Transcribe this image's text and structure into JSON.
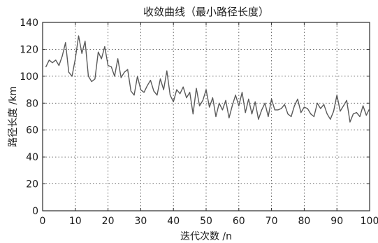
{
  "chart_data": {
    "type": "line",
    "title": "收敛曲线（最小路径长度）",
    "xlabel": "迭代次数 /n",
    "ylabel": "路径长度 /km",
    "xlim": [
      0,
      100
    ],
    "ylim": [
      0,
      140
    ],
    "xticks": [
      "0",
      "10",
      "20",
      "30",
      "40",
      "50",
      "60",
      "70",
      "80",
      "90",
      "100"
    ],
    "yticks": [
      "0",
      "20",
      "40",
      "60",
      "80",
      "100",
      "120",
      "140"
    ],
    "grid": true,
    "series": [
      {
        "x": [
          1,
          2,
          3,
          4,
          5,
          6,
          7,
          8,
          9,
          10,
          11,
          12,
          13,
          14,
          15,
          16,
          17,
          18,
          19,
          20,
          21,
          22,
          23,
          24,
          25,
          26,
          27,
          28,
          29,
          30,
          31,
          32,
          33,
          34,
          35,
          36,
          37,
          38,
          39,
          40,
          41,
          42,
          43,
          44,
          45,
          46,
          47,
          48,
          49,
          50,
          51,
          52,
          53,
          54,
          55,
          56,
          57,
          58,
          59,
          60,
          61,
          62,
          63,
          64,
          65,
          66,
          67,
          68,
          69,
          70,
          71,
          72,
          73,
          74,
          75,
          76,
          77,
          78,
          79,
          80,
          81,
          82,
          83,
          84,
          85,
          86,
          87,
          88,
          89,
          90,
          91,
          92,
          93,
          94,
          95,
          96,
          97,
          98,
          99,
          100
        ],
        "values": [
          107,
          112,
          110,
          112,
          108,
          115,
          125,
          103,
          100,
          113,
          130,
          117,
          126,
          100,
          96,
          98,
          118,
          113,
          122,
          108,
          107,
          100,
          113,
          99,
          103,
          105,
          89,
          86,
          100,
          90,
          88,
          93,
          97,
          89,
          86,
          98,
          90,
          104,
          86,
          81,
          90,
          87,
          92,
          84,
          88,
          72,
          91,
          78,
          82,
          90,
          77,
          84,
          70,
          80,
          75,
          82,
          69,
          78,
          86,
          78,
          88,
          73,
          83,
          72,
          81,
          68,
          75,
          80,
          70,
          83,
          75,
          75,
          76,
          79,
          72,
          70,
          78,
          83,
          73,
          77,
          76,
          72,
          70,
          80,
          76,
          79,
          72,
          68,
          74,
          86,
          74,
          78,
          82,
          66,
          72,
          73,
          70,
          78,
          71,
          76
        ]
      }
    ]
  }
}
